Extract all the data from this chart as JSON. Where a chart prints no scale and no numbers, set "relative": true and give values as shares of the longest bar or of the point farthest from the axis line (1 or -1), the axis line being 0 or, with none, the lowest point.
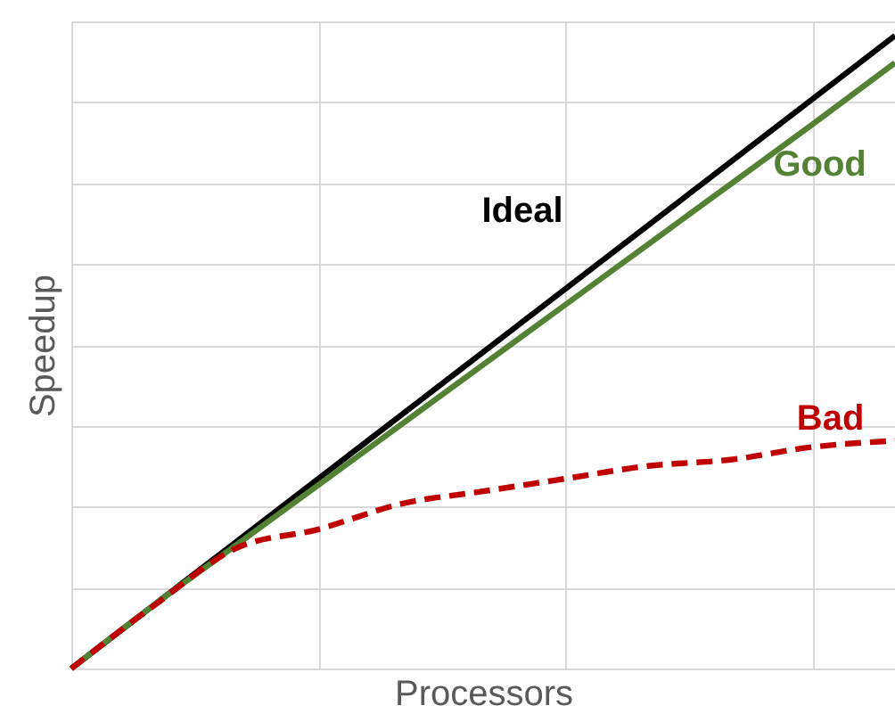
{
  "chart_data": {
    "type": "line",
    "relative": true,
    "xlabel": "Processors",
    "ylabel": "Speedup",
    "grid": true,
    "marker": "none",
    "categories": [
      null,
      null,
      null,
      null,
      null,
      null,
      null,
      null,
      null,
      null,
      null
    ],
    "series": [
      {
        "name": "Ideal",
        "color": "#000000",
        "line_style": "solid",
        "values": [
          0,
          0.1,
          0.2,
          0.3,
          0.4,
          0.5,
          0.6,
          0.7,
          0.8,
          0.9,
          1
        ]
      },
      {
        "name": "Good",
        "color": "#548235",
        "line_style": "solid",
        "values": [
          0,
          0.1,
          0.195,
          0.29,
          0.385,
          0.48,
          0.575,
          0.67,
          0.765,
          0.86,
          0.957
        ]
      },
      {
        "name": "Bad",
        "color": "#c00000",
        "line_style": "dashed",
        "values": [
          0,
          0.099,
          0.19,
          0.22,
          0.26,
          0.28,
          0.3,
          0.32,
          0.33,
          0.35,
          0.36
        ]
      }
    ]
  }
}
